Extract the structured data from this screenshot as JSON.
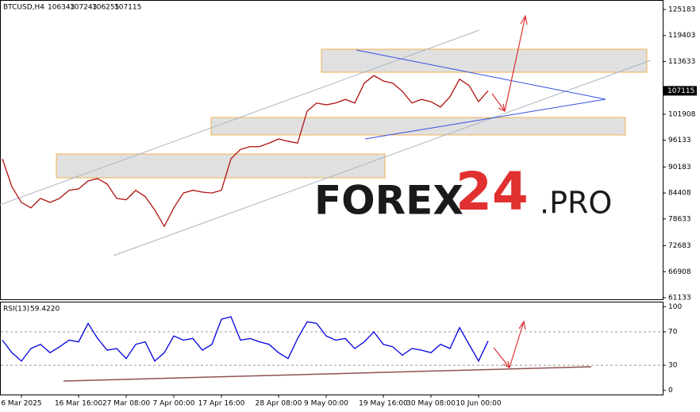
{
  "chart_data": [
    {
      "type": "line",
      "title": "BTCUSD,H4",
      "ohlc": [
        106343,
        107243,
        106255,
        107115
      ],
      "color": "#b01010",
      "categories": [
        null,
        null,
        "6 Mar 2025",
        null,
        null,
        null,
        null,
        null,
        "16 Mar 16:00",
        null,
        null,
        null,
        null,
        "27 Mar 08:00",
        null,
        null,
        null,
        null,
        "7 Apr 00:00",
        null,
        null,
        null,
        null,
        "17 Apr 16:00",
        null,
        null,
        null,
        null,
        null,
        "28 Apr 08:00",
        null,
        null,
        null,
        null,
        "9 May 00:00",
        null,
        null,
        null,
        null,
        null,
        "19 May 16:00",
        null,
        null,
        null,
        null,
        "30 May 08:00",
        null,
        null,
        null,
        null,
        "10 Jun 00:00",
        null
      ],
      "values": [
        92000,
        85800,
        82300,
        81100,
        83200,
        82300,
        83200,
        85000,
        85300,
        87100,
        87600,
        86400,
        83200,
        82900,
        85000,
        83600,
        80600,
        77000,
        81100,
        84400,
        85000,
        84600,
        84400,
        85000,
        92000,
        94100,
        94700,
        94700,
        95500,
        96400,
        95900,
        95500,
        102600,
        104400,
        104000,
        104400,
        105200,
        104400,
        108800,
        110500,
        109300,
        108800,
        107000,
        104400,
        105200,
        104700,
        103500,
        105800,
        109700,
        108300,
        104700,
        107115
      ],
      "ylim": [
        60780,
        127120
      ],
      "yticks": [
        125183,
        119403,
        113633,
        101908,
        96133,
        90183,
        84408,
        78633,
        72683,
        66908,
        61133
      ]
    },
    {
      "type": "line",
      "title": "RSI(13)",
      "value": {
        "value": 59.422,
        "label": "59.4220"
      },
      "color": "#0000e0",
      "values": [
        60,
        45,
        35,
        50,
        55,
        45,
        52,
        60,
        58,
        80,
        62,
        48,
        50,
        38,
        55,
        58,
        35,
        45,
        65,
        60,
        62,
        48,
        55,
        85,
        88,
        60,
        62,
        58,
        55,
        45,
        38,
        62,
        82,
        80,
        65,
        60,
        62,
        50,
        58,
        70,
        55,
        52,
        42,
        50,
        48,
        45,
        55,
        50,
        75,
        55,
        35,
        59
      ],
      "ylim": [
        -5,
        106
      ],
      "yticks": [
        100,
        70,
        30,
        0
      ]
    }
  ],
  "watermark": [
    "FOREX",
    "24",
    ".PRO"
  ]
}
